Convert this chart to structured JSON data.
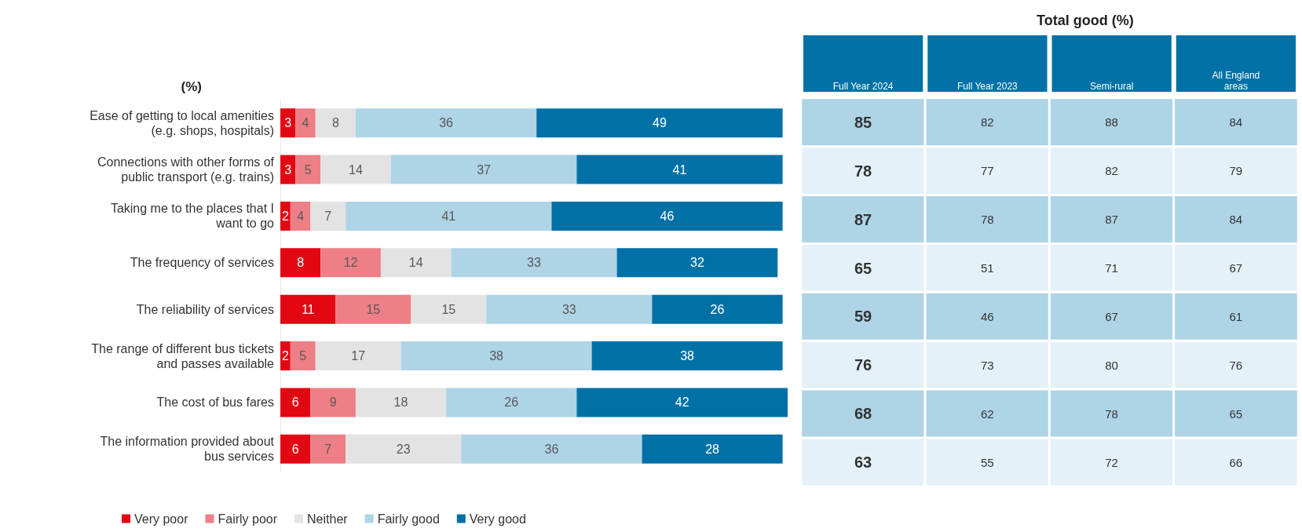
{
  "chart_data": [
    {
      "type": "bar",
      "orientation": "horizontal",
      "stacked": true,
      "ylabel": "(%)",
      "categories": [
        "Ease of getting to local amenities\n(e.g. shops, hospitals)",
        "Connections with other forms of\npublic transport (e.g. trains)",
        "Taking me to the places that I\nwant to go",
        "The frequency of services",
        "The reliability of services",
        "The range of different bus tickets\nand passes available",
        "The cost of bus fares",
        "The information provided about\nbus services"
      ],
      "series": [
        {
          "name": "Very poor",
          "color": "#e30613",
          "values": [
            3,
            3,
            2,
            8,
            11,
            2,
            6,
            6
          ]
        },
        {
          "name": "Fairly poor",
          "color": "#ee7f86",
          "values": [
            4,
            5,
            4,
            12,
            15,
            5,
            9,
            7
          ]
        },
        {
          "name": "Neither",
          "color": "#e3e3e3",
          "values": [
            8,
            14,
            7,
            14,
            15,
            17,
            18,
            23
          ]
        },
        {
          "name": "Fairly good",
          "color": "#aed4e6",
          "values": [
            36,
            37,
            41,
            33,
            33,
            38,
            26,
            36
          ]
        },
        {
          "name": "Very good",
          "color": "#0071a6",
          "values": [
            49,
            41,
            46,
            32,
            26,
            38,
            42,
            28
          ]
        }
      ],
      "xlim": [
        0,
        101
      ],
      "data_labels": true,
      "legend": "bottom",
      "tick_labels": "y"
    },
    {
      "type": "heatmap",
      "title": "Total good (%)",
      "data_labels": true,
      "categories": [
        "Full Year 2024",
        "Full Year 2023",
        "Semi-rural",
        "All England\nareas"
      ],
      "y_categories": [
        null,
        null,
        null,
        null,
        null,
        null,
        null,
        null
      ],
      "cells": [
        [
          85,
          82,
          88,
          84
        ],
        [
          78,
          77,
          82,
          79
        ],
        [
          87,
          78,
          87,
          84
        ],
        [
          65,
          51,
          71,
          67
        ],
        [
          59,
          46,
          67,
          61
        ],
        [
          76,
          73,
          80,
          76
        ],
        [
          68,
          62,
          78,
          65
        ],
        [
          63,
          55,
          72,
          66
        ]
      ]
    }
  ]
}
